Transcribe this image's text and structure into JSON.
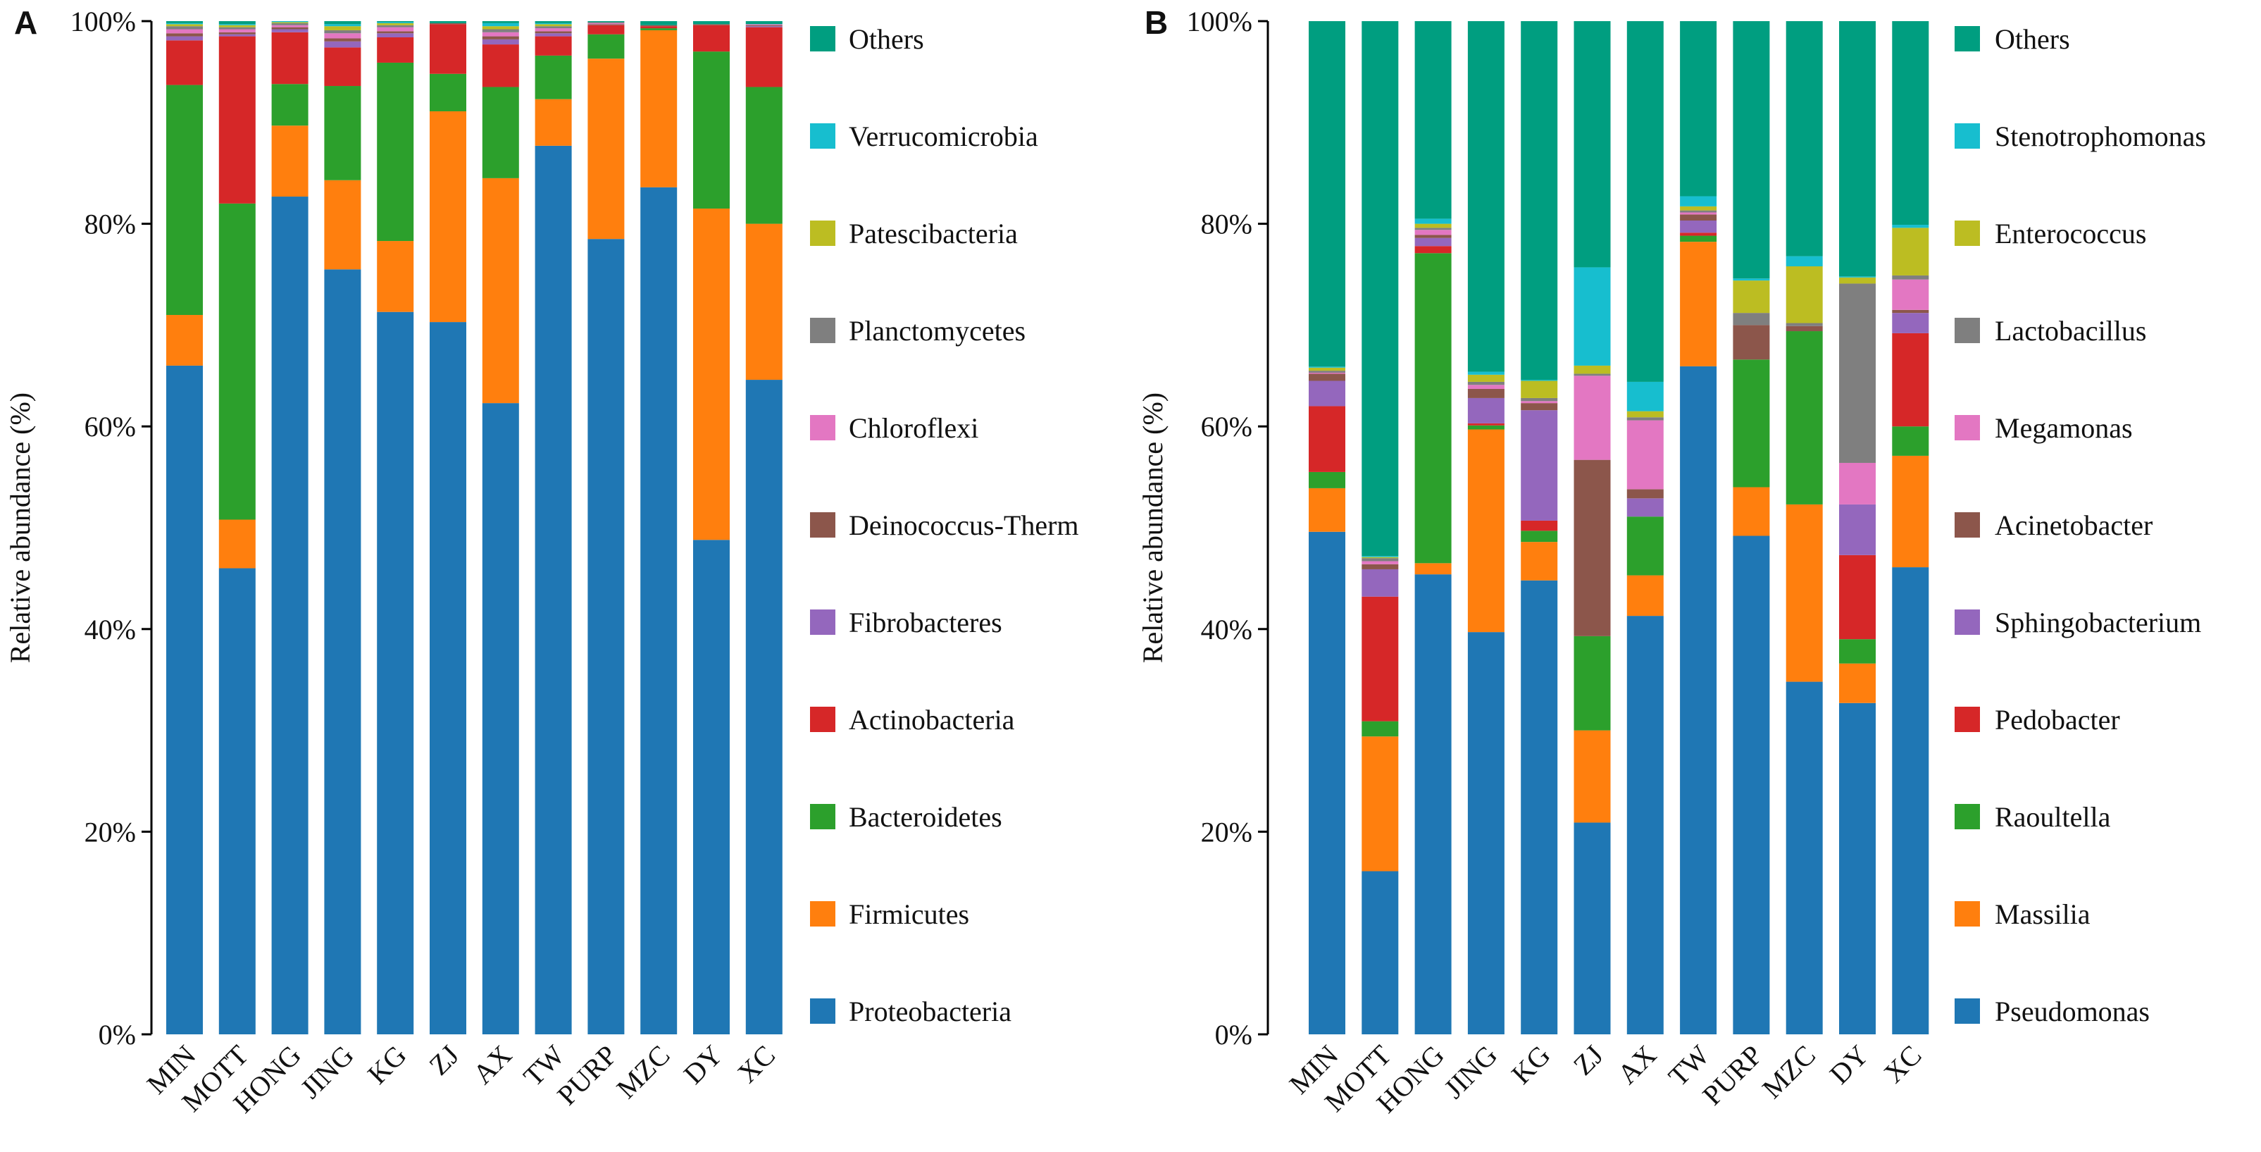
{
  "figure": {
    "panels": [
      "A",
      "B"
    ]
  },
  "chart_data": [
    {
      "type": "bar",
      "stacked": true,
      "panel_label": "A",
      "title": "",
      "xlabel": "",
      "ylabel": "Relative abundance (%)",
      "ylim": [
        0,
        100
      ],
      "yticks": [
        "0%",
        "20%",
        "40%",
        "60%",
        "80%",
        "100%"
      ],
      "legend_position": "right",
      "categories": [
        "MIN",
        "MOTT",
        "HONG",
        "JING",
        "KG",
        "ZJ",
        "AX",
        "TW",
        "PURP",
        "MZC",
        "DY",
        "XC"
      ],
      "series": [
        {
          "name": "Proteobacteria",
          "color": "#1f77b4",
          "values": [
            66.0,
            46.0,
            82.6,
            75.5,
            71.3,
            70.3,
            62.3,
            87.7,
            78.5,
            83.6,
            48.8,
            64.6
          ]
        },
        {
          "name": "Firmicutes",
          "color": "#ff7f0e",
          "values": [
            5.0,
            4.8,
            7.0,
            8.8,
            7.0,
            20.8,
            22.2,
            4.6,
            17.8,
            15.5,
            32.7,
            15.4
          ]
        },
        {
          "name": "Bacteroidetes",
          "color": "#2ca02c",
          "values": [
            22.7,
            31.2,
            4.1,
            9.3,
            17.6,
            3.7,
            9.0,
            4.3,
            2.4,
            0.2,
            15.5,
            13.5
          ]
        },
        {
          "name": "Actinobacteria",
          "color": "#d62728",
          "values": [
            4.4,
            16.5,
            5.1,
            3.8,
            2.5,
            4.9,
            4.2,
            1.9,
            0.9,
            0.2,
            2.6,
            5.9
          ]
        },
        {
          "name": "Fibrobacteres",
          "color": "#9467bd",
          "values": [
            0.4,
            0.2,
            0.3,
            0.6,
            0.4,
            0.0,
            0.5,
            0.3,
            0.0,
            0.0,
            0.0,
            0.1
          ]
        },
        {
          "name": "Deinococcus-Therm",
          "color": "#8c564b",
          "values": [
            0.3,
            0.2,
            0.2,
            0.3,
            0.2,
            0.1,
            0.3,
            0.2,
            0.1,
            0.1,
            0.1,
            0.1
          ]
        },
        {
          "name": "Chloroflexi",
          "color": "#e377c2",
          "values": [
            0.4,
            0.3,
            0.2,
            0.5,
            0.4,
            0.0,
            0.4,
            0.3,
            0.1,
            0.0,
            0.0,
            0.1
          ]
        },
        {
          "name": "Planctomycetes",
          "color": "#7f7f7f",
          "values": [
            0.3,
            0.2,
            0.2,
            0.3,
            0.2,
            0.0,
            0.3,
            0.2,
            0.1,
            0.0,
            0.0,
            0.0
          ]
        },
        {
          "name": "Patescibacteria",
          "color": "#bcbd22",
          "values": [
            0.2,
            0.2,
            0.1,
            0.4,
            0.2,
            0.0,
            0.3,
            0.2,
            0.0,
            0.0,
            0.0,
            0.0
          ]
        },
        {
          "name": "Verrucomicrobia",
          "color": "#17becf",
          "values": [
            0.1,
            0.1,
            0.1,
            0.2,
            0.1,
            0.0,
            0.3,
            0.1,
            0.0,
            0.0,
            0.0,
            0.0
          ]
        },
        {
          "name": "Others",
          "color": "#009e80",
          "values": [
            0.2,
            0.3,
            0.0,
            0.3,
            0.1,
            0.2,
            0.2,
            0.2,
            0.1,
            0.4,
            0.3,
            0.3
          ]
        }
      ]
    },
    {
      "type": "bar",
      "stacked": true,
      "panel_label": "B",
      "title": "",
      "xlabel": "",
      "ylabel": "Relative abundance (%)",
      "ylim": [
        0,
        100
      ],
      "yticks": [
        "0%",
        "20%",
        "40%",
        "60%",
        "80%",
        "100%"
      ],
      "legend_position": "right",
      "categories": [
        "MIN",
        "MOTT",
        "HONG",
        "JING",
        "KG",
        "ZJ",
        "AX",
        "TW",
        "PURP",
        "MZC",
        "DY",
        "XC"
      ],
      "series": [
        {
          "name": "Pseudomonas",
          "color": "#1f77b4",
          "values": [
            49.6,
            16.1,
            45.4,
            39.7,
            44.8,
            20.9,
            41.3,
            66.0,
            49.2,
            34.8,
            32.7,
            46.1
          ]
        },
        {
          "name": "Massilia",
          "color": "#ff7f0e",
          "values": [
            4.3,
            13.3,
            1.1,
            20.0,
            3.8,
            9.1,
            4.0,
            12.3,
            4.8,
            17.5,
            3.9,
            11.0
          ]
        },
        {
          "name": "Raoultella",
          "color": "#2ca02c",
          "values": [
            1.6,
            1.5,
            30.6,
            0.4,
            1.1,
            9.3,
            5.8,
            0.6,
            12.6,
            17.1,
            2.4,
            2.9
          ]
        },
        {
          "name": "Pedobacter",
          "color": "#d62728",
          "values": [
            6.5,
            12.3,
            0.7,
            0.2,
            1.0,
            0.0,
            0.0,
            0.3,
            0.0,
            0.0,
            8.3,
            9.2
          ]
        },
        {
          "name": "Sphingobacterium",
          "color": "#9467bd",
          "values": [
            2.5,
            2.7,
            0.8,
            2.5,
            10.9,
            0.0,
            1.8,
            1.2,
            0.0,
            0.0,
            5.0,
            2.0
          ]
        },
        {
          "name": "Acinetobacter",
          "color": "#8c564b",
          "values": [
            0.7,
            0.5,
            0.3,
            0.9,
            0.7,
            17.4,
            0.9,
            0.6,
            3.4,
            0.5,
            0.0,
            0.3
          ]
        },
        {
          "name": "Megamonas",
          "color": "#e377c2",
          "values": [
            0.1,
            0.3,
            0.5,
            0.4,
            0.2,
            8.3,
            6.8,
            0.2,
            0.0,
            0.0,
            4.1,
            3.0
          ]
        },
        {
          "name": "Lactobacillus",
          "color": "#7f7f7f",
          "values": [
            0.2,
            0.3,
            0.2,
            0.3,
            0.3,
            0.2,
            0.3,
            0.2,
            1.2,
            0.3,
            17.7,
            0.4
          ]
        },
        {
          "name": "Enterococcus",
          "color": "#bcbd22",
          "values": [
            0.3,
            0.1,
            0.4,
            0.7,
            1.7,
            0.8,
            0.6,
            0.4,
            3.2,
            5.6,
            0.6,
            4.7
          ]
        },
        {
          "name": "Stenotrophomonas",
          "color": "#17becf",
          "values": [
            0.1,
            0.1,
            0.5,
            0.3,
            0.1,
            9.7,
            2.9,
            1.0,
            0.2,
            1.0,
            0.1,
            0.3
          ]
        },
        {
          "name": "Others",
          "color": "#009e80",
          "values": [
            34.1,
            52.8,
            19.5,
            34.6,
            35.4,
            24.3,
            35.6,
            17.3,
            25.4,
            23.2,
            25.2,
            20.1
          ]
        }
      ]
    }
  ]
}
